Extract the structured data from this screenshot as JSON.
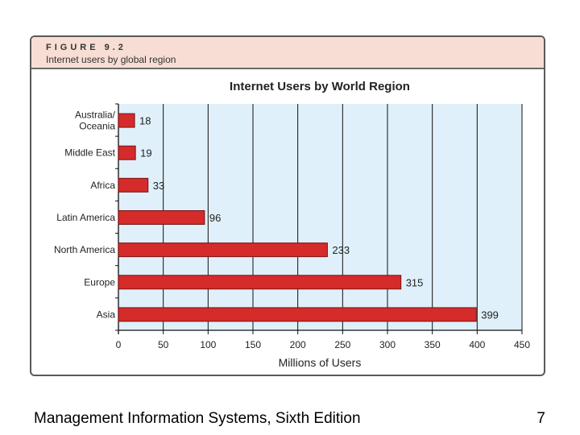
{
  "figure": {
    "label": "FIGURE 9.2",
    "caption": "Internet users by global region"
  },
  "chart_data": {
    "type": "bar",
    "orientation": "horizontal",
    "title": "Internet Users by World Region",
    "xlabel": "Millions of Users",
    "ylabel": "",
    "categories": [
      "Australia/\nOceania",
      "Middle East",
      "Africa",
      "Latin America",
      "North America",
      "Europe",
      "Asia"
    ],
    "values": [
      18,
      19,
      33,
      96,
      233,
      315,
      399
    ],
    "xlim": [
      0,
      450
    ],
    "xticks": [
      0,
      50,
      100,
      150,
      200,
      250,
      300,
      350,
      400,
      450
    ],
    "grid": true,
    "colors": {
      "bar": "#d52b2b",
      "bar_edge": "#7a1010",
      "plot_bg": "#dff0fa",
      "grid": "#111111"
    }
  },
  "footer": {
    "book": "Management Information Systems, Sixth Edition",
    "page": "7"
  }
}
